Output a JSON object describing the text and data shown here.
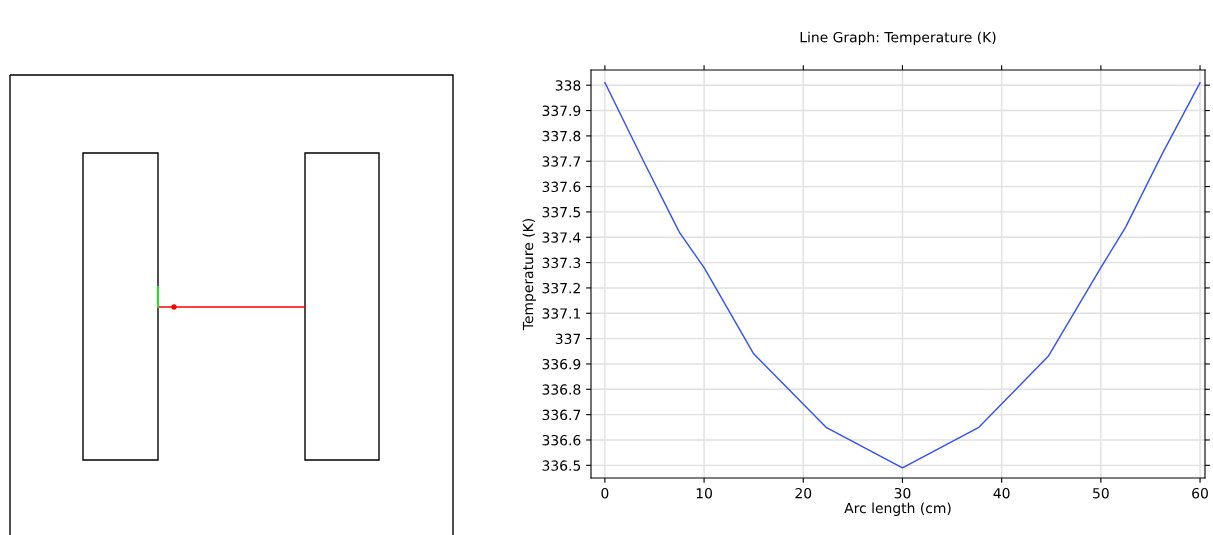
{
  "chart_data": {
    "type": "line",
    "title": "Line Graph: Temperature (K)",
    "xlabel": "Arc length (cm)",
    "ylabel": "Temperature (K)",
    "x": [
      0,
      3.9,
      7.5,
      10,
      15,
      22.3,
      30,
      37.7,
      44.7,
      50,
      52.5,
      56.2,
      60
    ],
    "series": [
      {
        "color": "#2f4fff",
        "values": [
          338.01,
          337.7,
          337.42,
          337.28,
          336.94,
          336.65,
          336.49,
          336.65,
          336.93,
          337.28,
          337.44,
          337.73,
          338.01
        ]
      }
    ],
    "xlim": [
      -1.4,
      60.5
    ],
    "xticks": [
      0,
      10,
      20,
      30,
      40,
      50,
      60
    ],
    "ylim": [
      336.45,
      338.06
    ],
    "yticks": [
      336.5,
      336.6,
      336.7,
      336.8,
      336.9,
      337,
      337.1,
      337.2,
      337.3,
      337.4,
      337.5,
      337.6,
      337.7,
      337.8,
      337.9,
      338
    ],
    "grid": true,
    "marker": "none",
    "line_style": "solid"
  }
}
